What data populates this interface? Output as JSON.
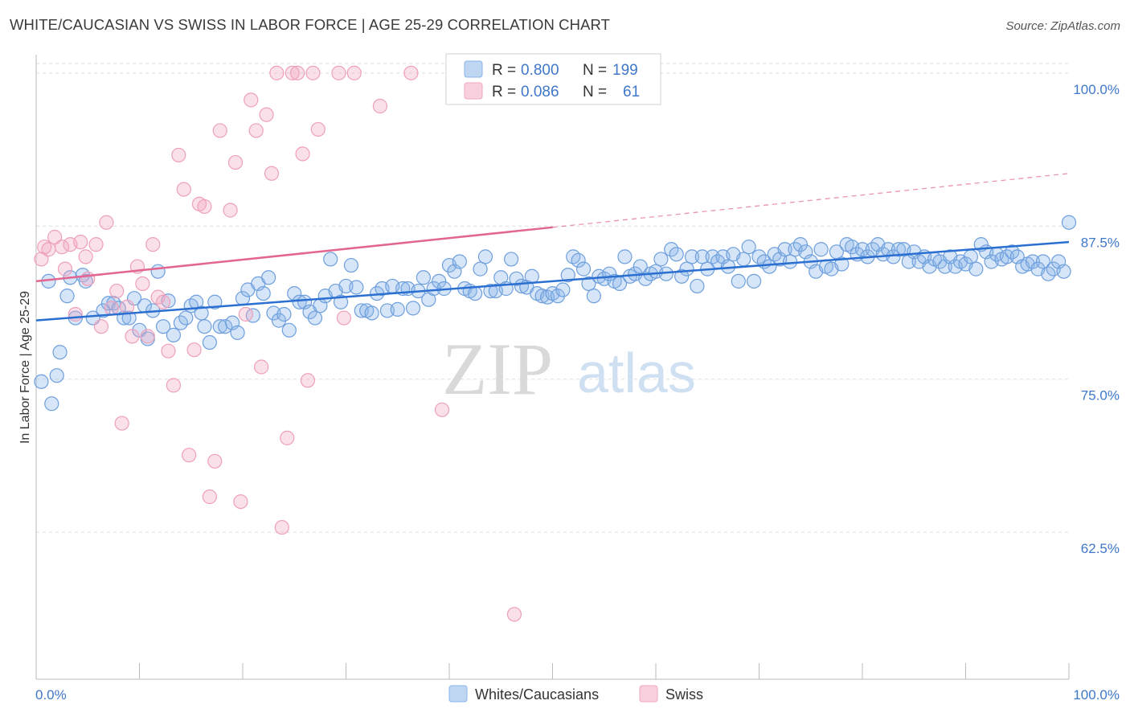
{
  "header": {
    "title": "WHITE/CAUCASIAN VS SWISS IN LABOR FORCE | AGE 25-29 CORRELATION CHART",
    "source": "Source: ZipAtlas.com"
  },
  "watermark": {
    "zip": "ZIP",
    "atlas": "atlas"
  },
  "legend": {
    "rows": [
      {
        "r_label": "R =",
        "r_value": "0.800",
        "n_label": "N =",
        "n_value": "199",
        "color": "#8ab4e8"
      },
      {
        "r_label": "R =",
        "r_value": "0.086",
        "n_label": "N =",
        "n_value": "61",
        "color": "#f2a7bf"
      }
    ]
  },
  "bottom_legend": {
    "items": [
      {
        "label": "Whites/Caucasians",
        "color": "#8ab4e8"
      },
      {
        "label": "Swiss",
        "color": "#f2a7bf"
      }
    ]
  },
  "colors": {
    "blue_fill": "rgba(138,180,232,0.35)",
    "blue_stroke": "#6e9fdd",
    "blue_line": "#2b6fd1",
    "pink_fill": "rgba(242,167,191,0.35)",
    "pink_stroke": "#eea0ba",
    "pink_line": "#e2668f",
    "axis_text": "#3f77c9",
    "grid": "#dddddd"
  },
  "chart_data": {
    "type": "scatter",
    "title": "WHITE/CAUCASIAN VS SWISS IN LABOR FORCE | AGE 25-29 CORRELATION CHART",
    "xlabel": "",
    "ylabel": "In Labor Force | Age 25-29",
    "xlim": [
      0,
      100
    ],
    "ylim": [
      50.5,
      101.5
    ],
    "x_tick_labels": [
      "0.0%",
      "100.0%"
    ],
    "y_ticks": [
      100.0,
      87.5,
      75.0,
      62.5
    ],
    "y_tick_labels": [
      "100.0%",
      "87.5%",
      "75.0%",
      "62.5%"
    ],
    "grid": true,
    "legend_position": "top-center",
    "series": [
      {
        "name": "Whites/Caucasians",
        "r": 0.8,
        "n": 199,
        "trend": {
          "x": [
            0,
            100
          ],
          "y": [
            79.8,
            86.2
          ]
        },
        "points": [
          [
            0.5,
            74.8
          ],
          [
            1.5,
            73.0
          ],
          [
            2,
            75.3
          ],
          [
            2.3,
            77.2
          ],
          [
            3,
            81.8
          ],
          [
            3.3,
            83.3
          ],
          [
            3.8,
            80.0
          ],
          [
            4.5,
            83.5
          ],
          [
            4.8,
            83.0
          ],
          [
            5.5,
            80.0
          ],
          [
            6.5,
            80.6
          ],
          [
            7,
            81.2
          ],
          [
            7.5,
            81.2
          ],
          [
            8,
            80.8
          ],
          [
            8.5,
            80.0
          ],
          [
            9,
            80.0
          ],
          [
            9.5,
            81.6
          ],
          [
            10,
            79.0
          ],
          [
            10.5,
            81.0
          ],
          [
            10.8,
            78.3
          ],
          [
            11.3,
            80.6
          ],
          [
            11.8,
            83.8
          ],
          [
            12.3,
            79.3
          ],
          [
            12.8,
            81.4
          ],
          [
            13.3,
            78.6
          ],
          [
            14,
            79.6
          ],
          [
            14.5,
            80.0
          ],
          [
            15,
            81.0
          ],
          [
            15.5,
            81.3
          ],
          [
            16,
            80.4
          ],
          [
            16.3,
            79.3
          ],
          [
            16.8,
            78.0
          ],
          [
            17.3,
            81.3
          ],
          [
            17.8,
            79.3
          ],
          [
            18.3,
            79.3
          ],
          [
            19,
            79.6
          ],
          [
            19.5,
            78.8
          ],
          [
            20,
            81.6
          ],
          [
            20.5,
            82.3
          ],
          [
            21,
            80.2
          ],
          [
            21.5,
            82.8
          ],
          [
            22,
            82.0
          ],
          [
            22.5,
            83.3
          ],
          [
            23,
            80.4
          ],
          [
            23.5,
            79.8
          ],
          [
            24,
            80.3
          ],
          [
            24.5,
            79.0
          ],
          [
            25,
            82.0
          ],
          [
            25.5,
            81.3
          ],
          [
            26,
            81.3
          ],
          [
            26.5,
            80.5
          ],
          [
            27,
            80.0
          ],
          [
            27.5,
            81.0
          ],
          [
            28,
            81.8
          ],
          [
            28.5,
            84.8
          ],
          [
            29,
            82.2
          ],
          [
            29.5,
            81.3
          ],
          [
            30,
            82.6
          ],
          [
            30.5,
            84.3
          ],
          [
            31,
            82.5
          ],
          [
            31.5,
            80.6
          ],
          [
            32,
            80.6
          ],
          [
            32.5,
            80.4
          ],
          [
            33,
            82.0
          ],
          [
            33.5,
            82.4
          ],
          [
            34,
            80.6
          ],
          [
            34.5,
            82.6
          ],
          [
            35,
            80.7
          ],
          [
            35.5,
            82.4
          ],
          [
            36,
            82.4
          ],
          [
            36.5,
            80.8
          ],
          [
            37,
            82.2
          ],
          [
            37.5,
            83.3
          ],
          [
            38,
            81.5
          ],
          [
            38.5,
            82.4
          ],
          [
            39,
            83.0
          ],
          [
            39.5,
            82.4
          ],
          [
            40,
            84.3
          ],
          [
            40.5,
            83.8
          ],
          [
            41,
            84.6
          ],
          [
            41.5,
            82.4
          ],
          [
            42,
            82.2
          ],
          [
            42.5,
            82.0
          ],
          [
            43,
            84.0
          ],
          [
            43.5,
            85.0
          ],
          [
            44,
            82.2
          ],
          [
            44.5,
            82.2
          ],
          [
            45,
            83.3
          ],
          [
            45.5,
            82.4
          ],
          [
            46,
            84.8
          ],
          [
            46.5,
            83.2
          ],
          [
            47,
            82.6
          ],
          [
            47.5,
            82.5
          ],
          [
            48,
            83.4
          ],
          [
            48.5,
            82.0
          ],
          [
            49,
            81.8
          ],
          [
            49.5,
            81.7
          ],
          [
            50,
            82.0
          ],
          [
            50.5,
            81.8
          ],
          [
            51,
            82.3
          ],
          [
            51.5,
            83.5
          ],
          [
            52,
            85.0
          ],
          [
            52.5,
            84.7
          ],
          [
            53,
            84.0
          ],
          [
            53.5,
            82.8
          ],
          [
            54,
            81.8
          ],
          [
            54.5,
            83.4
          ],
          [
            55,
            83.2
          ],
          [
            55.5,
            83.6
          ],
          [
            56,
            83.0
          ],
          [
            56.5,
            82.8
          ],
          [
            57,
            85.0
          ],
          [
            57.5,
            83.4
          ],
          [
            58,
            83.6
          ],
          [
            58.5,
            84.2
          ],
          [
            59,
            83.2
          ],
          [
            59.5,
            83.6
          ],
          [
            60,
            83.8
          ],
          [
            60.5,
            84.8
          ],
          [
            61,
            83.6
          ],
          [
            61.5,
            85.6
          ],
          [
            62,
            85.2
          ],
          [
            62.5,
            83.4
          ],
          [
            63,
            84.0
          ],
          [
            63.5,
            85.0
          ],
          [
            64,
            82.6
          ],
          [
            64.5,
            85.0
          ],
          [
            65,
            84.0
          ],
          [
            65.5,
            85.0
          ],
          [
            66,
            84.6
          ],
          [
            66.5,
            85.0
          ],
          [
            67,
            84.2
          ],
          [
            67.5,
            85.2
          ],
          [
            68,
            83.0
          ],
          [
            68.5,
            84.8
          ],
          [
            69,
            85.8
          ],
          [
            69.5,
            83.0
          ],
          [
            70,
            85.0
          ],
          [
            70.5,
            84.6
          ],
          [
            71,
            84.2
          ],
          [
            71.5,
            85.2
          ],
          [
            72,
            84.8
          ],
          [
            72.5,
            85.6
          ],
          [
            73,
            84.6
          ],
          [
            73.5,
            85.6
          ],
          [
            74,
            86.0
          ],
          [
            74.5,
            85.4
          ],
          [
            75,
            84.6
          ],
          [
            75.5,
            83.8
          ],
          [
            76,
            85.6
          ],
          [
            76.5,
            84.2
          ],
          [
            77,
            84.0
          ],
          [
            77.5,
            85.4
          ],
          [
            78,
            84.4
          ],
          [
            78.5,
            86.0
          ],
          [
            79,
            85.8
          ],
          [
            79.5,
            85.2
          ],
          [
            80,
            85.6
          ],
          [
            80.5,
            85.0
          ],
          [
            81,
            85.6
          ],
          [
            81.5,
            86.0
          ],
          [
            82,
            85.2
          ],
          [
            82.5,
            85.6
          ],
          [
            83,
            85.0
          ],
          [
            83.5,
            85.6
          ],
          [
            84,
            85.6
          ],
          [
            84.5,
            84.6
          ],
          [
            85,
            85.4
          ],
          [
            85.5,
            84.6
          ],
          [
            86,
            85.0
          ],
          [
            86.5,
            84.2
          ],
          [
            87,
            84.8
          ],
          [
            87.5,
            84.6
          ],
          [
            88,
            84.2
          ],
          [
            88.5,
            85.0
          ],
          [
            89,
            84.2
          ],
          [
            89.5,
            84.6
          ],
          [
            90,
            84.4
          ],
          [
            90.5,
            85.0
          ],
          [
            91,
            84.0
          ],
          [
            91.5,
            86.0
          ],
          [
            92,
            85.4
          ],
          [
            92.5,
            84.6
          ],
          [
            93,
            85.2
          ],
          [
            93.5,
            84.8
          ],
          [
            94,
            85.0
          ],
          [
            94.5,
            85.4
          ],
          [
            95,
            85.0
          ],
          [
            95.5,
            84.2
          ],
          [
            96,
            84.4
          ],
          [
            96.5,
            84.6
          ],
          [
            97,
            84.0
          ],
          [
            97.5,
            84.6
          ],
          [
            98,
            83.6
          ],
          [
            98.5,
            84.0
          ],
          [
            99,
            84.6
          ],
          [
            99.5,
            83.8
          ],
          [
            100,
            87.8
          ],
          [
            1.2,
            83.0
          ]
        ]
      },
      {
        "name": "Swiss",
        "r": 0.086,
        "n": 61,
        "trend": {
          "x": [
            0,
            50
          ],
          "y": [
            83.0,
            87.4
          ]
        },
        "trend_dashed": {
          "x": [
            50,
            100
          ],
          "y": [
            87.4,
            91.8
          ]
        },
        "points": [
          [
            0.5,
            84.8
          ],
          [
            0.8,
            85.8
          ],
          [
            1.2,
            85.6
          ],
          [
            1.8,
            86.6
          ],
          [
            2.5,
            85.8
          ],
          [
            2.8,
            84.0
          ],
          [
            3.3,
            86.0
          ],
          [
            3.8,
            80.3
          ],
          [
            4.3,
            86.2
          ],
          [
            4.8,
            85.0
          ],
          [
            5,
            83.2
          ],
          [
            5.8,
            86.0
          ],
          [
            6.3,
            79.3
          ],
          [
            6.8,
            87.8
          ],
          [
            7.3,
            80.8
          ],
          [
            7.8,
            82.2
          ],
          [
            8.3,
            71.4
          ],
          [
            8.8,
            80.9
          ],
          [
            9.3,
            78.5
          ],
          [
            9.8,
            84.2
          ],
          [
            10.3,
            82.8
          ],
          [
            10.8,
            78.5
          ],
          [
            11.3,
            86.0
          ],
          [
            11.8,
            81.7
          ],
          [
            12.3,
            81.3
          ],
          [
            12.8,
            77.3
          ],
          [
            13.3,
            74.5
          ],
          [
            13.8,
            93.3
          ],
          [
            14.3,
            90.5
          ],
          [
            14.8,
            68.8
          ],
          [
            15.3,
            77.4
          ],
          [
            15.8,
            89.3
          ],
          [
            16.3,
            89.1
          ],
          [
            16.8,
            65.4
          ],
          [
            17.3,
            68.3
          ],
          [
            17.8,
            95.3
          ],
          [
            18.8,
            88.8
          ],
          [
            19.3,
            92.7
          ],
          [
            19.8,
            65.0
          ],
          [
            20.3,
            80.3
          ],
          [
            20.8,
            97.8
          ],
          [
            21.3,
            95.3
          ],
          [
            21.8,
            76.0
          ],
          [
            22.3,
            96.6
          ],
          [
            22.8,
            91.8
          ],
          [
            23.3,
            100.0
          ],
          [
            23.8,
            62.9
          ],
          [
            24.3,
            70.2
          ],
          [
            24.8,
            100.0
          ],
          [
            25.3,
            100.0
          ],
          [
            25.8,
            93.4
          ],
          [
            26.3,
            74.9
          ],
          [
            26.8,
            100.0
          ],
          [
            27.3,
            95.4
          ],
          [
            29.3,
            100.0
          ],
          [
            29.8,
            80.0
          ],
          [
            30.8,
            100.0
          ],
          [
            33.3,
            97.3
          ],
          [
            36.3,
            100.0
          ],
          [
            39.3,
            72.5
          ],
          [
            46.3,
            55.8
          ]
        ]
      }
    ]
  }
}
